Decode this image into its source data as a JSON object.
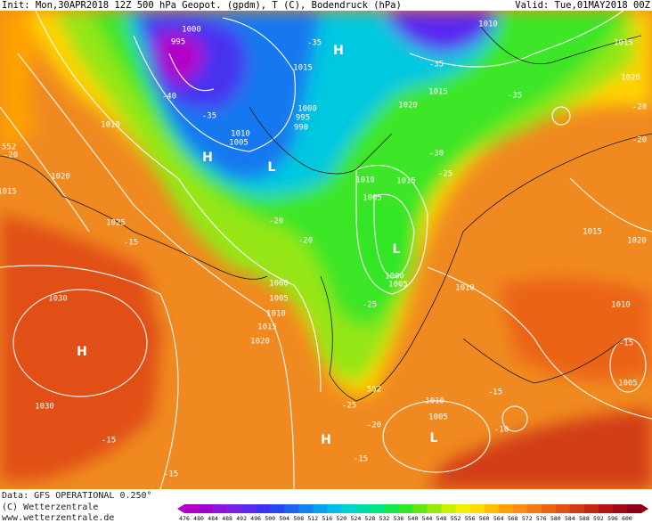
{
  "header": {
    "init": "Init: Mon,30APR2018 12Z 500 hPa Geopot. (gpdm), T (C), Bodendruck (hPa)",
    "valid": "Valid: Tue,01MAY2018 00Z"
  },
  "footer": {
    "data": "Data: GFS OPERATIONAL 0.250°",
    "copyright": "(C) Wetterzentrale",
    "url": "www.wetterzentrale.de"
  },
  "colorbar": {
    "labels": [
      476,
      480,
      484,
      488,
      492,
      496,
      500,
      504,
      508,
      512,
      516,
      520,
      524,
      528,
      532,
      536,
      540,
      544,
      548,
      552,
      556,
      560,
      564,
      568,
      572,
      576,
      580,
      584,
      588,
      592,
      596,
      600
    ],
    "colors": [
      "#b400c8",
      "#a000d2",
      "#8c14dc",
      "#781ee6",
      "#5a28f0",
      "#3c32f0",
      "#2846f0",
      "#1e64f0",
      "#1482f0",
      "#0aa0f0",
      "#00beeb",
      "#00d2d2",
      "#00dcaa",
      "#00e682",
      "#14e650",
      "#32e628",
      "#64e614",
      "#96eb0a",
      "#c8f000",
      "#f0f000",
      "#ffdc00",
      "#ffbe00",
      "#ffa000",
      "#ff8c14",
      "#f57814",
      "#eb6414",
      "#e15014",
      "#d23c14",
      "#c32814",
      "#b41414",
      "#a00a14",
      "#8c0014"
    ]
  },
  "map": {
    "labels": [
      "995",
      "1000",
      "-40",
      "-35",
      "1010",
      "1005",
      "1000",
      "995",
      "990",
      "H",
      "L",
      "-35",
      "1015",
      "H",
      "-35",
      "1015",
      "-35",
      "1010",
      "1015",
      "1020",
      "-20",
      "-20",
      "1010",
      "1020",
      "1025",
      "-15",
      "1015",
      "-20",
      "552",
      "1030",
      "H",
      "1030",
      "-15",
      "-15",
      "1020",
      "1010",
      "1015",
      "1005",
      "-20",
      "-20",
      "L",
      "1000",
      "1005",
      "-30",
      "-25",
      "1010",
      "1015",
      "1020",
      "1000",
      "1005",
      "1010",
      "1015",
      "1020",
      "-25",
      "1010",
      "-15",
      "1005",
      "552",
      "-25",
      "-15",
      "1010",
      "1005",
      "-20",
      "-10",
      "H",
      "L",
      "-15"
    ]
  }
}
